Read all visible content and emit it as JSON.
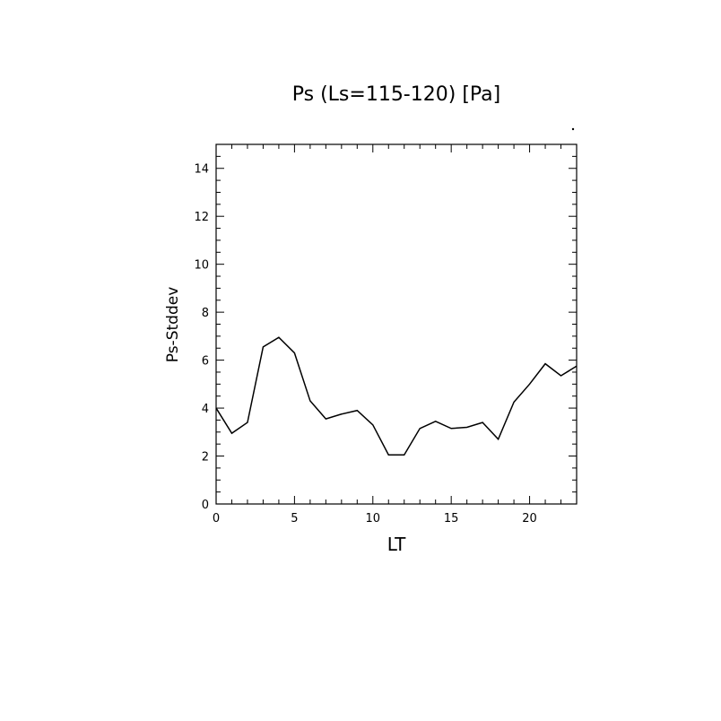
{
  "chart_data": {
    "type": "line",
    "title": "Ps (Ls=115-120) [Pa]",
    "xlabel": "LT",
    "ylabel": "Ps-Stddev",
    "xlim": [
      0,
      23
    ],
    "ylim": [
      0,
      15
    ],
    "x_ticks": [
      0,
      5,
      10,
      15,
      20
    ],
    "y_ticks": [
      0,
      2,
      4,
      6,
      8,
      10,
      12,
      14
    ],
    "grid": false,
    "series": [
      {
        "x": [
          0,
          1,
          2,
          3,
          4,
          5,
          6,
          7,
          8,
          9,
          10,
          11,
          12,
          13,
          14,
          15,
          16,
          17,
          18,
          19,
          20,
          21,
          22,
          23
        ],
        "values": [
          4.0,
          2.95,
          3.4,
          6.55,
          6.95,
          6.3,
          4.3,
          3.55,
          3.75,
          3.9,
          3.3,
          2.05,
          2.05,
          3.15,
          3.45,
          3.15,
          3.2,
          3.4,
          2.7,
          4.25,
          5.0,
          5.85,
          5.35,
          5.75
        ],
        "color": "#000000"
      }
    ]
  }
}
